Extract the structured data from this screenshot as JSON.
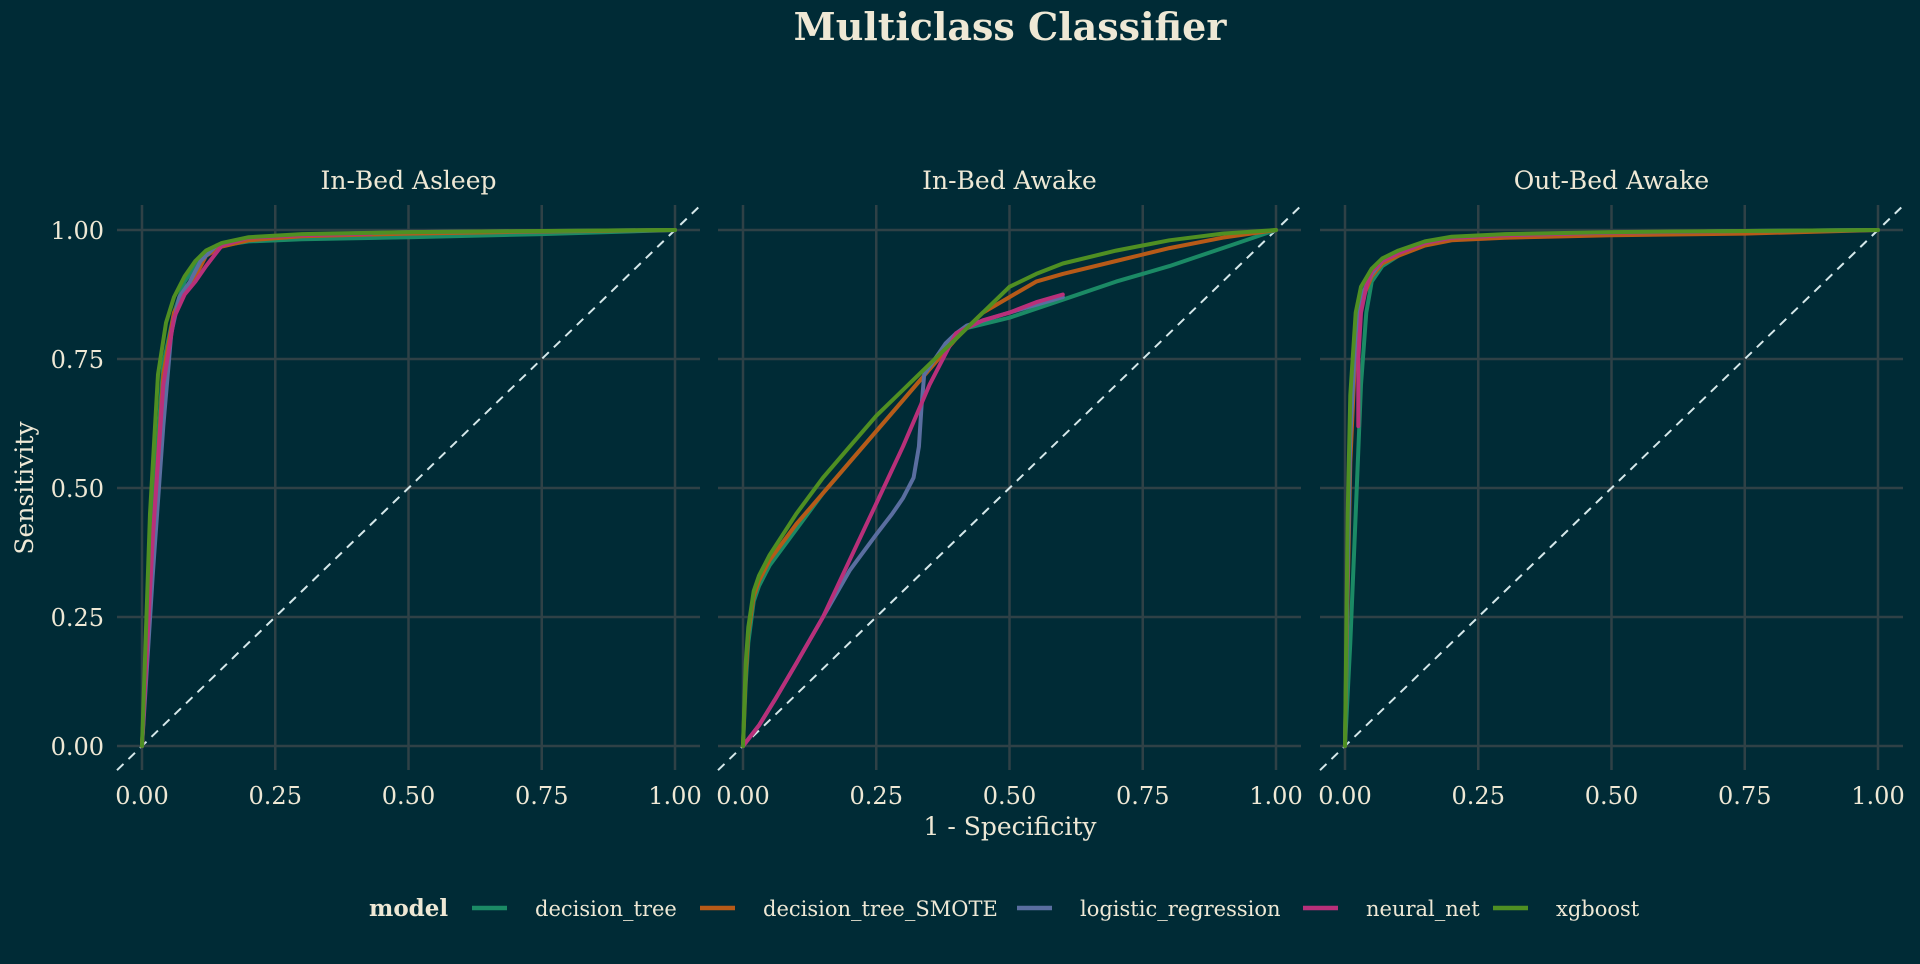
{
  "chart_data": {
    "type": "line",
    "title": "Multiclass Classifier",
    "xlabel": "1 - Specificity",
    "ylabel": "Sensitivity",
    "xlim": [
      0,
      1
    ],
    "ylim": [
      0,
      1
    ],
    "x_ticks": [
      "0.00",
      "0.25",
      "0.50",
      "0.75",
      "1.00"
    ],
    "y_ticks": [
      "0.00",
      "0.25",
      "0.50",
      "0.75",
      "1.00"
    ],
    "grid": true,
    "reference_line": "dashed diagonal y = x",
    "legend": {
      "title": "model",
      "placement": "bottom",
      "entries": [
        "decision_tree",
        "decision_tree_SMOTE",
        "logistic_regression",
        "neural_net",
        "xgboost"
      ]
    },
    "colors": {
      "background": "#002b36",
      "grid": "#2f4146",
      "text": "#eee8d5",
      "diagonal": "#d5e8ea",
      "decision_tree": "#1b8a65",
      "decision_tree_SMOTE": "#b75a18",
      "logistic_regression": "#5a6ea0",
      "neural_net": "#b8307a",
      "xgboost": "#4f8f22"
    },
    "panels": [
      {
        "title": "In-Bed Asleep",
        "series": [
          {
            "name": "decision_tree",
            "x": [
              0,
              0.02,
              0.04,
              0.06,
              0.08,
              0.1,
              0.12,
              0.15,
              0.2,
              0.3,
              0.5,
              0.75,
              1
            ],
            "y": [
              0,
              0.45,
              0.74,
              0.84,
              0.9,
              0.93,
              0.955,
              0.97,
              0.978,
              0.982,
              0.986,
              0.992,
              1
            ]
          },
          {
            "name": "decision_tree_SMOTE",
            "x": [
              0,
              0.02,
              0.04,
              0.06,
              0.08,
              0.1,
              0.12,
              0.15,
              0.2,
              0.3,
              0.5,
              0.75,
              1
            ],
            "y": [
              0,
              0.4,
              0.72,
              0.84,
              0.88,
              0.91,
              0.95,
              0.968,
              0.98,
              0.988,
              0.993,
              0.997,
              1
            ]
          },
          {
            "name": "logistic_regression",
            "x": [
              0,
              0.02,
              0.04,
              0.055,
              0.07,
              0.09,
              0.11,
              0.14,
              0.2,
              0.3,
              0.5,
              1
            ],
            "y": [
              0,
              0.33,
              0.62,
              0.8,
              0.87,
              0.9,
              0.94,
              0.97,
              0.985,
              0.991,
              0.996,
              1
            ]
          },
          {
            "name": "neural_net",
            "x": [
              0,
              0.02,
              0.04,
              0.06,
              0.08,
              0.1,
              0.12,
              0.15,
              0.2,
              0.3,
              0.43
            ],
            "y": [
              0,
              0.4,
              0.7,
              0.83,
              0.875,
              0.9,
              0.93,
              0.97,
              0.985,
              0.99,
              0.993
            ]
          },
          {
            "name": "xgboost",
            "x": [
              0,
              0.015,
              0.03,
              0.045,
              0.06,
              0.08,
              0.1,
              0.12,
              0.15,
              0.2,
              0.3,
              0.5,
              0.75,
              1
            ],
            "y": [
              0,
              0.45,
              0.72,
              0.82,
              0.87,
              0.91,
              0.94,
              0.96,
              0.975,
              0.986,
              0.992,
              0.996,
              0.998,
              1
            ]
          }
        ]
      },
      {
        "title": "In-Bed Awake",
        "series": [
          {
            "name": "decision_tree",
            "x": [
              0,
              0.005,
              0.01,
              0.02,
              0.03,
              0.05,
              0.1,
              0.15,
              0.2,
              0.25,
              0.3,
              0.35,
              0.4,
              0.42,
              0.5,
              0.6,
              0.7,
              0.8,
              0.9,
              1
            ],
            "y": [
              0,
              0.12,
              0.2,
              0.28,
              0.31,
              0.35,
              0.42,
              0.49,
              0.55,
              0.61,
              0.67,
              0.73,
              0.79,
              0.81,
              0.83,
              0.865,
              0.9,
              0.93,
              0.965,
              1
            ]
          },
          {
            "name": "decision_tree_SMOTE",
            "x": [
              0,
              0.005,
              0.01,
              0.02,
              0.03,
              0.05,
              0.1,
              0.15,
              0.2,
              0.25,
              0.3,
              0.35,
              0.4,
              0.45,
              0.5,
              0.55,
              0.6,
              0.7,
              0.8,
              0.9,
              1
            ],
            "y": [
              0,
              0.14,
              0.22,
              0.29,
              0.32,
              0.36,
              0.43,
              0.49,
              0.55,
              0.61,
              0.67,
              0.73,
              0.79,
              0.84,
              0.87,
              0.9,
              0.915,
              0.94,
              0.965,
              0.985,
              1
            ]
          },
          {
            "name": "logistic_regression",
            "x": [
              0,
              0.03,
              0.06,
              0.1,
              0.15,
              0.2,
              0.25,
              0.28,
              0.3,
              0.32,
              0.33,
              0.335,
              0.34,
              0.36,
              0.38,
              0.4,
              0.42,
              0.5,
              0.6
            ],
            "y": [
              0,
              0.04,
              0.09,
              0.16,
              0.25,
              0.34,
              0.41,
              0.45,
              0.48,
              0.52,
              0.58,
              0.66,
              0.72,
              0.75,
              0.78,
              0.8,
              0.815,
              0.84,
              0.87
            ]
          },
          {
            "name": "neural_net",
            "x": [
              0,
              0.03,
              0.06,
              0.1,
              0.15,
              0.2,
              0.25,
              0.3,
              0.35,
              0.4,
              0.45,
              0.5,
              0.55,
              0.6
            ],
            "y": [
              0,
              0.04,
              0.09,
              0.16,
              0.25,
              0.36,
              0.47,
              0.58,
              0.7,
              0.8,
              0.825,
              0.84,
              0.86,
              0.875
            ]
          },
          {
            "name": "xgboost",
            "x": [
              0,
              0.005,
              0.01,
              0.02,
              0.03,
              0.05,
              0.1,
              0.15,
              0.2,
              0.25,
              0.3,
              0.35,
              0.4,
              0.45,
              0.5,
              0.55,
              0.6,
              0.7,
              0.8,
              0.9,
              1
            ],
            "y": [
              0,
              0.16,
              0.23,
              0.3,
              0.33,
              0.37,
              0.45,
              0.52,
              0.58,
              0.64,
              0.69,
              0.74,
              0.79,
              0.84,
              0.89,
              0.915,
              0.935,
              0.96,
              0.98,
              0.993,
              1
            ]
          }
        ]
      },
      {
        "title": "Out-Bed Awake",
        "series": [
          {
            "name": "decision_tree",
            "x": [
              0,
              0.01,
              0.02,
              0.03,
              0.04,
              0.05,
              0.07,
              0.1,
              0.15,
              0.2,
              0.3,
              0.5,
              0.75,
              1
            ],
            "y": [
              0,
              0.2,
              0.45,
              0.7,
              0.84,
              0.9,
              0.93,
              0.95,
              0.975,
              0.985,
              0.99,
              0.995,
              0.998,
              1
            ]
          },
          {
            "name": "decision_tree_SMOTE",
            "x": [
              0,
              0.005,
              0.01,
              0.02,
              0.03,
              0.05,
              0.07,
              0.1,
              0.15,
              0.2,
              0.3,
              0.5,
              0.75,
              1
            ],
            "y": [
              0,
              0.3,
              0.55,
              0.78,
              0.86,
              0.91,
              0.935,
              0.95,
              0.97,
              0.98,
              0.985,
              0.99,
              0.993,
              1
            ]
          },
          {
            "name": "logistic_regression",
            "x": [
              0,
              0.005,
              0.01,
              0.02,
              0.03,
              0.05,
              0.07,
              0.1,
              0.15,
              0.2,
              0.3,
              0.5,
              0.75,
              1
            ],
            "y": [
              0,
              0.35,
              0.6,
              0.8,
              0.87,
              0.915,
              0.94,
              0.955,
              0.975,
              0.985,
              0.99,
              0.995,
              0.998,
              1
            ]
          },
          {
            "name": "neural_net",
            "x": [
              0.025,
              0.025,
              0.03,
              0.04,
              0.05,
              0.07,
              0.1,
              0.15,
              0.2,
              0.3,
              0.5,
              0.7
            ],
            "y": [
              0.62,
              0.75,
              0.84,
              0.89,
              0.92,
              0.94,
              0.955,
              0.975,
              0.985,
              0.99,
              0.995,
              0.997
            ]
          },
          {
            "name": "xgboost",
            "x": [
              0,
              0.005,
              0.01,
              0.02,
              0.03,
              0.05,
              0.07,
              0.1,
              0.15,
              0.2,
              0.3,
              0.5,
              0.75,
              1
            ],
            "y": [
              0,
              0.45,
              0.68,
              0.84,
              0.89,
              0.925,
              0.945,
              0.96,
              0.978,
              0.987,
              0.992,
              0.996,
              0.998,
              1
            ]
          }
        ]
      }
    ]
  }
}
